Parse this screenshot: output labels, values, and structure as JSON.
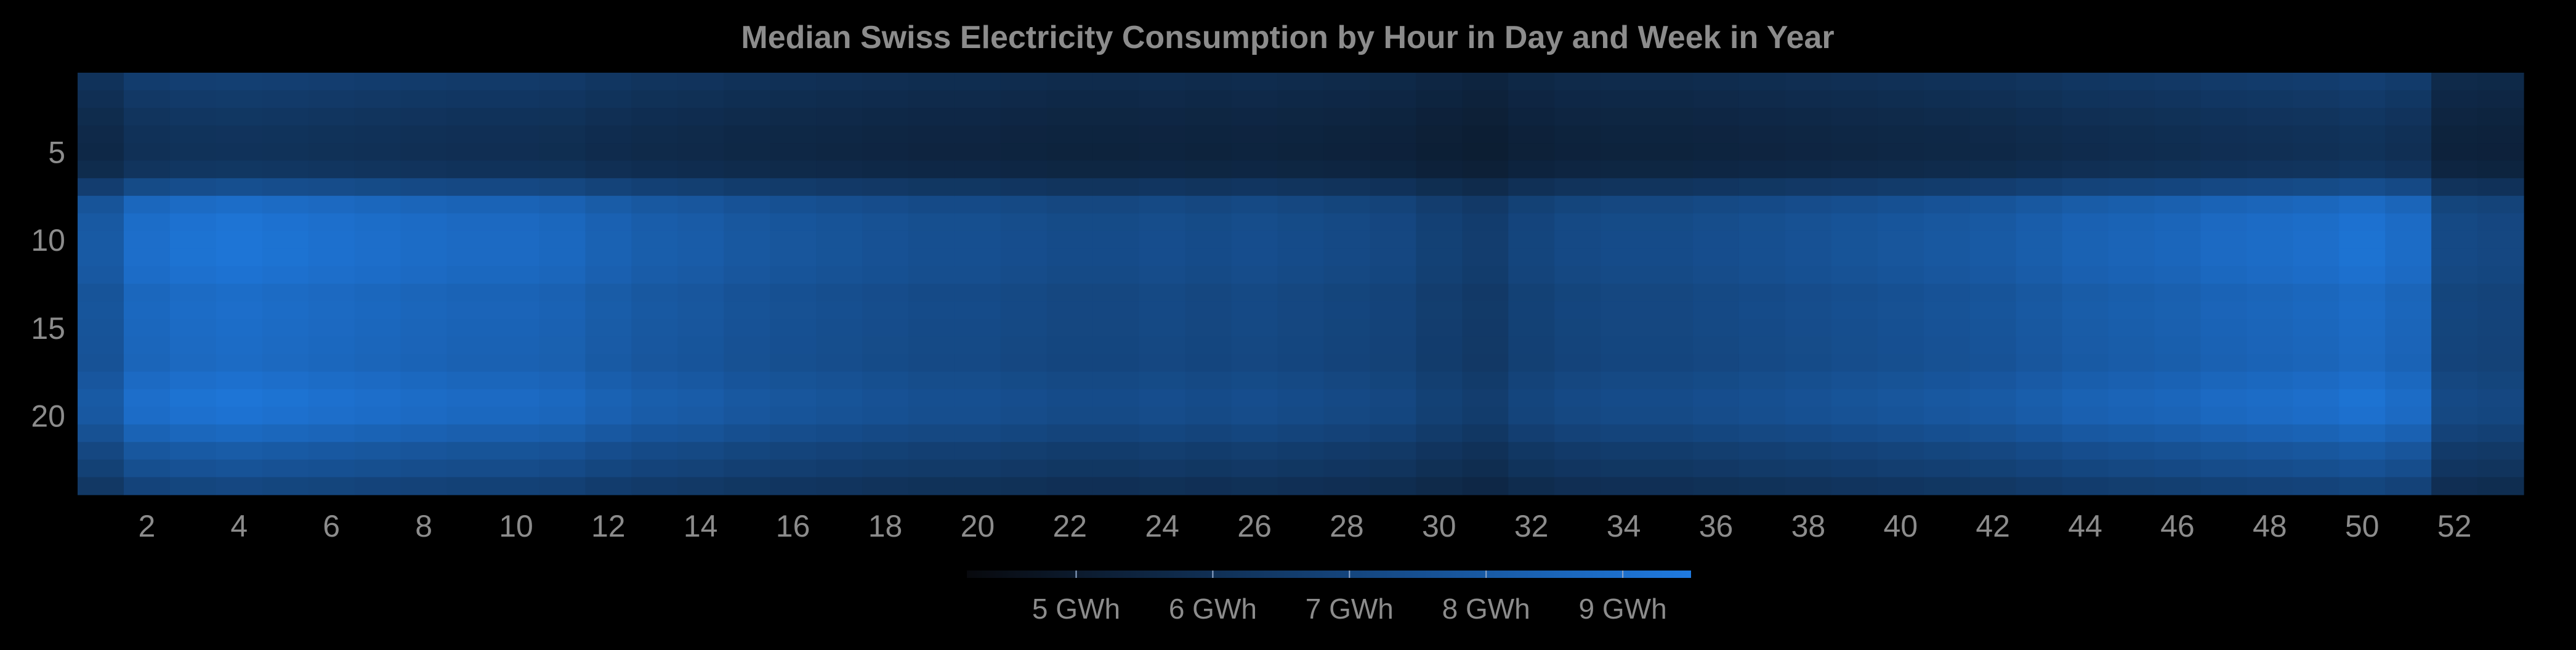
{
  "chart_data": {
    "type": "heatmap",
    "title": "Median Swiss Electricity Consumption by Hour in Day and Week in Year",
    "xlabel": "",
    "ylabel": "",
    "x": [
      1,
      2,
      3,
      4,
      5,
      6,
      7,
      8,
      9,
      10,
      11,
      12,
      13,
      14,
      15,
      16,
      17,
      18,
      19,
      20,
      21,
      22,
      23,
      24,
      25,
      26,
      27,
      28,
      29,
      30,
      31,
      32,
      33,
      34,
      35,
      36,
      37,
      38,
      39,
      40,
      41,
      42,
      43,
      44,
      45,
      46,
      47,
      48,
      49,
      50,
      51,
      52,
      53
    ],
    "y": [
      1,
      2,
      3,
      4,
      5,
      6,
      7,
      8,
      9,
      10,
      11,
      12,
      13,
      14,
      15,
      16,
      17,
      18,
      19,
      20,
      21,
      22,
      23,
      24
    ],
    "xticks": [
      2,
      4,
      6,
      8,
      10,
      12,
      14,
      16,
      18,
      20,
      22,
      24,
      26,
      28,
      30,
      32,
      34,
      36,
      38,
      40,
      42,
      44,
      46,
      48,
      50,
      52
    ],
    "yticks": [
      5,
      10,
      15,
      20
    ],
    "xlim": [
      0.5,
      53.5
    ],
    "ylim": [
      0.5,
      24.5
    ],
    "hour_profile": [
      0.48,
      0.44,
      0.4,
      0.37,
      0.36,
      0.4,
      0.62,
      0.9,
      0.96,
      0.97,
      0.97,
      0.95,
      0.9,
      0.91,
      0.9,
      0.89,
      0.88,
      0.93,
      0.97,
      0.95,
      0.86,
      0.74,
      0.66,
      0.55
    ],
    "annual_level": {
      "weeks": [
        1,
        2,
        3,
        4,
        5,
        6,
        7,
        8,
        9,
        10,
        11,
        12,
        13,
        14,
        15,
        16,
        17,
        18,
        19,
        20,
        21,
        22,
        23,
        24,
        25,
        26,
        27,
        28,
        29,
        30,
        31,
        32,
        33,
        34,
        35,
        36,
        37,
        38,
        39,
        40,
        41,
        42,
        43,
        44,
        45,
        46,
        47,
        48,
        49,
        50,
        51,
        52,
        53
      ],
      "gwh": [
        8.1,
        9.1,
        9.3,
        9.4,
        9.3,
        9.2,
        9.1,
        9.0,
        8.9,
        8.9,
        8.8,
        8.5,
        8.3,
        8.2,
        8.0,
        7.9,
        7.8,
        7.7,
        7.6,
        7.6,
        7.5,
        7.4,
        7.4,
        7.5,
        7.4,
        7.5,
        7.4,
        7.3,
        7.2,
        6.9,
        6.7,
        7.1,
        7.3,
        7.4,
        7.4,
        7.5,
        7.6,
        7.7,
        7.8,
        7.9,
        8.0,
        8.1,
        8.3,
        8.5,
        8.6,
        8.7,
        8.9,
        9.0,
        9.1,
        9.3,
        9.0,
        7.3,
        7.2
      ]
    },
    "colorscale": {
      "min_gwh": 4.2,
      "max_gwh": 9.5,
      "colors": [
        "#08090d",
        "#1f7ae0"
      ],
      "ticks": [
        5,
        6,
        7,
        8,
        9
      ],
      "tick_labels": [
        "5 GWh",
        "6 GWh",
        "7 GWh",
        "8 GWh",
        "9 GWh"
      ],
      "orientation": "horizontal",
      "placement": "bottom"
    },
    "grid": false
  }
}
